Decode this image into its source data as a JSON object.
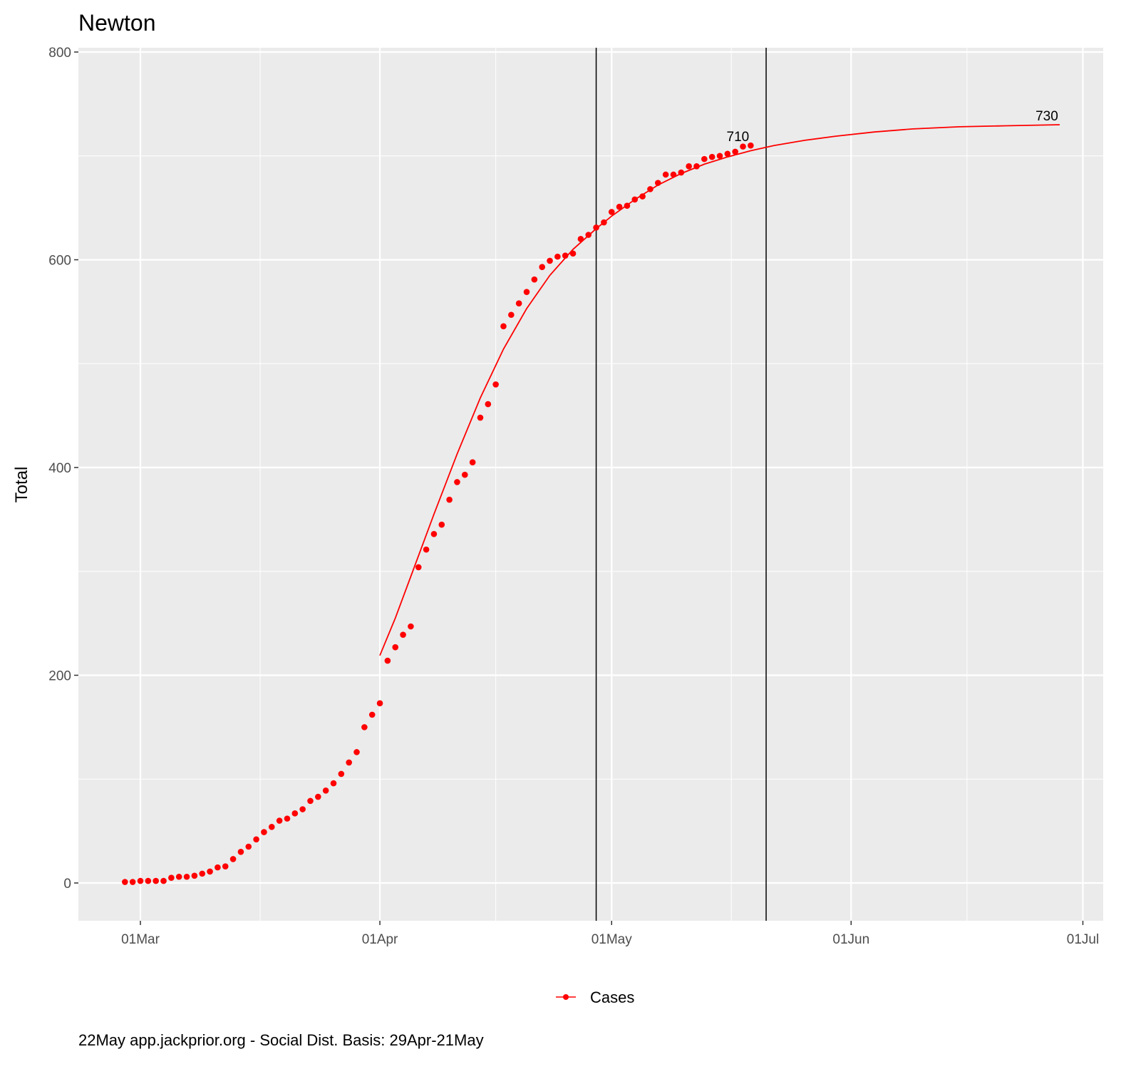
{
  "chart_data": {
    "type": "scatter",
    "title": "Newton",
    "xlabel": "",
    "ylabel": "Total",
    "x_origin": "01Mar",
    "x_unit": "days since 01Mar",
    "xlim": [
      -8,
      35.5,
      0
    ],
    "x_range_days": [
      -8,
      124
    ],
    "ylim": [
      -40,
      805
    ],
    "x_ticks": [
      {
        "day": 0,
        "label": "01Mar"
      },
      {
        "day": 31,
        "label": "01Apr"
      },
      {
        "day": 61,
        "label": "01May"
      },
      {
        "day": 92,
        "label": "01Jun"
      },
      {
        "day": 122,
        "label": "01Jul"
      }
    ],
    "y_ticks": [
      {
        "value": 0,
        "label": "0"
      },
      {
        "value": 200,
        "label": "200"
      },
      {
        "value": 400,
        "label": "400"
      },
      {
        "value": 600,
        "label": "600"
      },
      {
        "value": 800,
        "label": "800"
      }
    ],
    "grid": true,
    "legend": {
      "position": "bottom",
      "entries": [
        "Cases"
      ]
    },
    "series": [
      {
        "name": "Cases",
        "color": "#ff0000",
        "points": [
          [
            -2,
            1
          ],
          [
            -1,
            1
          ],
          [
            0,
            2
          ],
          [
            1,
            2
          ],
          [
            2,
            2
          ],
          [
            3,
            2
          ],
          [
            4,
            5
          ],
          [
            5,
            6
          ],
          [
            6,
            6
          ],
          [
            7,
            7
          ],
          [
            8,
            9
          ],
          [
            9,
            11
          ],
          [
            10,
            15
          ],
          [
            11,
            16
          ],
          [
            12,
            23
          ],
          [
            13,
            30
          ],
          [
            14,
            35
          ],
          [
            15,
            42
          ],
          [
            16,
            49
          ],
          [
            17,
            54
          ],
          [
            18,
            60
          ],
          [
            19,
            62
          ],
          [
            20,
            67
          ],
          [
            21,
            71
          ],
          [
            22,
            79
          ],
          [
            23,
            83
          ],
          [
            24,
            89
          ],
          [
            25,
            96
          ],
          [
            26,
            105
          ],
          [
            27,
            116
          ],
          [
            28,
            126
          ],
          [
            29,
            150
          ],
          [
            30,
            162
          ],
          [
            31,
            173
          ],
          [
            32,
            214
          ],
          [
            33,
            227
          ],
          [
            34,
            239
          ],
          [
            35,
            247
          ],
          [
            36,
            304
          ],
          [
            37,
            321
          ],
          [
            38,
            336
          ],
          [
            39,
            345
          ],
          [
            40,
            369
          ],
          [
            41,
            386
          ],
          [
            42,
            393
          ],
          [
            43,
            405
          ],
          [
            44,
            448
          ],
          [
            45,
            461
          ],
          [
            46,
            480
          ],
          [
            47,
            536
          ],
          [
            48,
            547
          ],
          [
            49,
            558
          ],
          [
            50,
            569
          ],
          [
            51,
            581
          ],
          [
            52,
            593
          ],
          [
            53,
            599
          ],
          [
            54,
            603
          ],
          [
            55,
            604
          ],
          [
            56,
            606
          ],
          [
            57,
            620
          ],
          [
            58,
            624
          ],
          [
            59,
            631
          ],
          [
            60,
            636
          ],
          [
            61,
            646
          ],
          [
            62,
            651
          ],
          [
            63,
            652
          ],
          [
            64,
            658
          ],
          [
            65,
            661
          ],
          [
            66,
            668
          ],
          [
            67,
            674
          ],
          [
            68,
            682
          ],
          [
            69,
            682
          ],
          [
            70,
            684
          ],
          [
            71,
            690
          ],
          [
            72,
            690
          ],
          [
            73,
            697
          ],
          [
            74,
            699
          ],
          [
            75,
            700
          ],
          [
            76,
            702
          ],
          [
            77,
            704
          ],
          [
            78,
            709
          ],
          [
            79,
            710
          ]
        ]
      },
      {
        "name": "Fit",
        "color": "#ff0000",
        "points": [
          [
            31,
            219
          ],
          [
            33,
            255
          ],
          [
            35,
            295
          ],
          [
            38,
            355
          ],
          [
            41,
            413
          ],
          [
            44,
            467
          ],
          [
            47,
            514
          ],
          [
            50,
            553
          ],
          [
            53,
            585
          ],
          [
            56,
            610
          ],
          [
            59,
            630
          ],
          [
            61,
            642
          ],
          [
            64,
            658
          ],
          [
            67,
            672
          ],
          [
            70,
            683
          ],
          [
            73,
            692
          ],
          [
            76,
            699
          ],
          [
            79,
            705
          ],
          [
            82,
            710
          ],
          [
            86,
            715
          ],
          [
            90,
            719
          ],
          [
            95,
            723
          ],
          [
            100,
            726
          ],
          [
            106,
            728
          ],
          [
            112,
            729
          ],
          [
            119,
            730
          ]
        ]
      }
    ],
    "vlines": [
      {
        "day": 59,
        "label": "29Apr"
      },
      {
        "day": 81,
        "label": "21May"
      }
    ],
    "annotations": [
      {
        "day": 79,
        "value": 710,
        "text": "710"
      },
      {
        "day": 119,
        "value": 730,
        "text": "730"
      }
    ],
    "caption": "22May app.jackprior.org  - Social Dist. Basis: 29Apr-21May"
  }
}
